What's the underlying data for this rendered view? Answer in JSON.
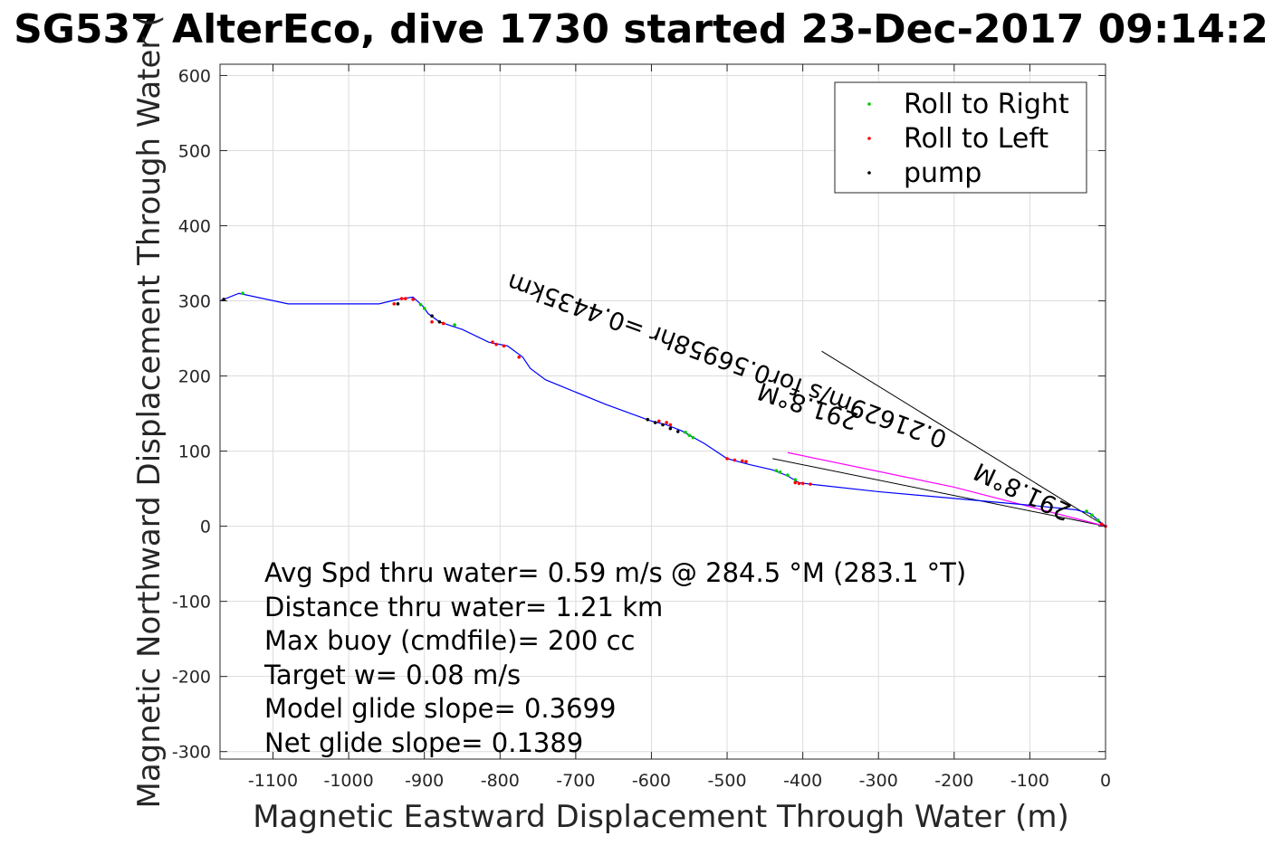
{
  "chart_data": {
    "type": "line",
    "title": "SG537 AlterEco, dive 1730 started 23-Dec-2017 09:14:2",
    "xlabel": "Magnetic Eastward Displacement Through Water (m)",
    "ylabel": "Magnetic Northward Displacement Through Water (",
    "xlim": [
      -1170,
      0
    ],
    "ylim": [
      -310,
      615
    ],
    "xticks": [
      -1100,
      -1000,
      -900,
      -800,
      -700,
      -600,
      -500,
      -400,
      -300,
      -200,
      -100,
      0
    ],
    "yticks": [
      600,
      500,
      400,
      300,
      200,
      100,
      0,
      -100,
      -200,
      -300
    ],
    "grid": true,
    "legend_position": "top-right",
    "legend": [
      {
        "label": "Roll to Right",
        "color": "#00cc00"
      },
      {
        "label": "Roll to Left",
        "color": "#ff0000"
      },
      {
        "label": "pump",
        "color": "#000000"
      }
    ],
    "track": {
      "color": "#0000ff",
      "x": [
        0,
        -10,
        -20,
        -40,
        -100,
        -200,
        -300,
        -390,
        -405,
        -420,
        -440,
        -470,
        -500,
        -530,
        -560,
        -580,
        -600,
        -660,
        -740,
        -760,
        -770,
        -790,
        -815,
        -850,
        -880,
        -895,
        -902,
        -915,
        -935,
        -960,
        -1080,
        -1145,
        -1170
      ],
      "y": [
        0,
        8,
        17,
        22,
        28,
        37,
        46,
        56,
        58,
        67,
        75,
        82,
        90,
        110,
        127,
        135,
        140,
        162,
        195,
        210,
        225,
        240,
        245,
        262,
        272,
        283,
        293,
        305,
        302,
        296,
        296,
        310,
        300
      ]
    },
    "roll_right": {
      "x": [
        -10,
        -18,
        -25,
        -410,
        -420,
        -430,
        -435,
        -545,
        -550,
        -555,
        -860,
        -900,
        -905,
        -1140
      ],
      "y": [
        8,
        15,
        20,
        62,
        68,
        72,
        74,
        118,
        121,
        125,
        268,
        290,
        295,
        310
      ]
    },
    "roll_left": {
      "x": [
        0,
        -5,
        -390,
        -400,
        -405,
        -410,
        -475,
        -480,
        -490,
        -500,
        -575,
        -580,
        -590,
        -775,
        -795,
        -805,
        -810,
        -875,
        -890,
        -915,
        -925,
        -930,
        -940,
        -1165
      ],
      "y": [
        0,
        3,
        56,
        57,
        57,
        58,
        86,
        87,
        88,
        90,
        135,
        138,
        140,
        225,
        240,
        242,
        245,
        270,
        272,
        302,
        303,
        303,
        296,
        302
      ]
    },
    "pump": {
      "x": [
        -565,
        -575,
        -585,
        -595,
        -605,
        -880,
        -890,
        -935,
        -1165
      ],
      "y": [
        126,
        130,
        135,
        138,
        142,
        272,
        280,
        296,
        302
      ]
    },
    "pink_segment": {
      "color": "#ff00ff",
      "x": [
        0,
        -200,
        -420
      ],
      "y": [
        0,
        52,
        98
      ]
    },
    "reference_lines": [
      {
        "x": [
          0,
          -375
        ],
        "y": [
          0,
          233
        ]
      },
      {
        "x": [
          0,
          -440
        ],
        "y": [
          0,
          90
        ]
      }
    ],
    "annotations": [
      {
        "text": "0.21629m/s for0.56958hr =0.4435km"
      },
      {
        "text": "291.8°M"
      },
      {
        "text": "291.8°M"
      }
    ],
    "stats": [
      "Avg Spd thru water=  0.59 m/s @ 284.5 °M (283.1 °T)",
      "Distance thru water=  1.21 km",
      "Max buoy (cmdfile)= 200 cc",
      "Target w= 0.08 m/s",
      "Model glide slope= 0.3699",
      "Net glide slope= 0.1389"
    ]
  }
}
